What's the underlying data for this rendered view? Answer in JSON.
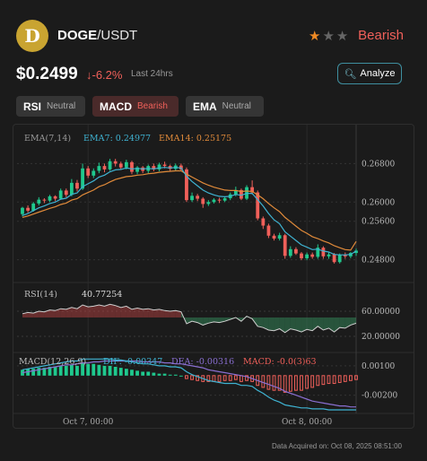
{
  "header": {
    "logo_letter": "D",
    "base": "DOGE",
    "quote": "/USDT",
    "rating_filled": 1,
    "rating_total": 3,
    "sentiment": "Bearish"
  },
  "price": {
    "value": "$0.2499",
    "change": "-6.2%",
    "change_arrow": "↓",
    "period": "Last 24hrs"
  },
  "analyze_label": "Analyze",
  "indicators": [
    {
      "name": "RSI",
      "status": "Neutral"
    },
    {
      "name": "MACD",
      "status": "Bearish"
    },
    {
      "name": "EMA",
      "status": "Neutral"
    }
  ],
  "colors": {
    "up": "#1fc98e",
    "down": "#f0605a",
    "ema7": "#3fb3d2",
    "ema14": "#e08a3a",
    "accent": "#f08a24"
  },
  "chart_data": {
    "type": "candlestick",
    "legend": {
      "ema_title": "EMA(7,14)",
      "ema7": "EMA7: 0.24977",
      "ema14": "EMA14: 0.25175",
      "rsi_title": "RSI(14)",
      "rsi_value": "40.77254",
      "macd_title": "MACD(12,26,9)",
      "dif": "DIF: -0.00347",
      "dea": "DEA: -0.00316",
      "macd": "MACD: -0.0(3)63"
    },
    "price_axis": {
      "ticks": [
        "0.26800",
        "0.26000",
        "0.25600",
        "0.24800"
      ],
      "ylim": [
        0.244,
        0.272
      ]
    },
    "rsi_axis": {
      "ticks": [
        "60.00000",
        "20.00000"
      ],
      "ylim": [
        0,
        100
      ]
    },
    "macd_axis": {
      "ticks": [
        "0.00100",
        "-0.00200"
      ],
      "ylim": [
        -0.0035,
        0.002
      ]
    },
    "time_ticks": [
      {
        "label": "Oct 7, 00:00",
        "index": 12
      },
      {
        "label": "Oct 8, 00:00",
        "index": 52
      }
    ],
    "candles": [
      [
        0.2575,
        0.2588,
        0.257,
        0.259
      ],
      [
        0.2588,
        0.2582,
        0.2578,
        0.2593
      ],
      [
        0.2582,
        0.2597,
        0.258,
        0.26
      ],
      [
        0.2597,
        0.2605,
        0.2593,
        0.261
      ],
      [
        0.2605,
        0.2603,
        0.2598,
        0.2608
      ],
      [
        0.2603,
        0.2612,
        0.26,
        0.2615
      ],
      [
        0.2612,
        0.2607,
        0.2602,
        0.2614
      ],
      [
        0.2607,
        0.2624,
        0.2605,
        0.2628
      ],
      [
        0.2624,
        0.2615,
        0.261,
        0.2628
      ],
      [
        0.2615,
        0.264,
        0.2612,
        0.2648
      ],
      [
        0.264,
        0.2628,
        0.2622,
        0.2646
      ],
      [
        0.2628,
        0.267,
        0.2625,
        0.268
      ],
      [
        0.267,
        0.2655,
        0.265,
        0.2675
      ],
      [
        0.2655,
        0.2665,
        0.265,
        0.267
      ],
      [
        0.2665,
        0.2675,
        0.266,
        0.2682
      ],
      [
        0.2675,
        0.2668,
        0.2662,
        0.268
      ],
      [
        0.2668,
        0.2685,
        0.2665,
        0.269
      ],
      [
        0.2685,
        0.268,
        0.2674,
        0.269
      ],
      [
        0.268,
        0.2672,
        0.2667,
        0.2684
      ],
      [
        0.2672,
        0.2683,
        0.2668,
        0.2688
      ],
      [
        0.2683,
        0.2663,
        0.2658,
        0.2686
      ],
      [
        0.2663,
        0.2672,
        0.2658,
        0.2675
      ],
      [
        0.2672,
        0.2665,
        0.266,
        0.2675
      ],
      [
        0.2665,
        0.2675,
        0.266,
        0.2678
      ],
      [
        0.2675,
        0.2668,
        0.2664,
        0.268
      ],
      [
        0.2668,
        0.2678,
        0.2664,
        0.2682
      ],
      [
        0.2678,
        0.2675,
        0.267,
        0.2684
      ],
      [
        0.2675,
        0.2669,
        0.2664,
        0.2678
      ],
      [
        0.2669,
        0.2676,
        0.2664,
        0.268
      ],
      [
        0.2676,
        0.2668,
        0.2664,
        0.268
      ],
      [
        0.2668,
        0.2604,
        0.26,
        0.2672
      ],
      [
        0.2604,
        0.2613,
        0.26,
        0.262
      ],
      [
        0.2613,
        0.2607,
        0.2602,
        0.2617
      ],
      [
        0.2607,
        0.2596,
        0.2588,
        0.261
      ],
      [
        0.2596,
        0.26,
        0.2592,
        0.2604
      ],
      [
        0.26,
        0.2605,
        0.2597,
        0.2608
      ],
      [
        0.2605,
        0.2603,
        0.2598,
        0.2609
      ],
      [
        0.2603,
        0.2608,
        0.26,
        0.2612
      ],
      [
        0.2608,
        0.2616,
        0.2604,
        0.262
      ],
      [
        0.2616,
        0.2625,
        0.2612,
        0.2632
      ],
      [
        0.2625,
        0.2607,
        0.2604,
        0.2628
      ],
      [
        0.2607,
        0.2631,
        0.2604,
        0.2635
      ],
      [
        0.2631,
        0.262,
        0.2616,
        0.2645
      ],
      [
        0.262,
        0.2566,
        0.2562,
        0.2624
      ],
      [
        0.2566,
        0.2551,
        0.2544,
        0.257
      ],
      [
        0.2551,
        0.253,
        0.2525,
        0.2555
      ],
      [
        0.253,
        0.2524,
        0.252,
        0.2534
      ],
      [
        0.2524,
        0.2531,
        0.252,
        0.2536
      ],
      [
        0.2531,
        0.2488,
        0.2482,
        0.2534
      ],
      [
        0.2488,
        0.2502,
        0.2484,
        0.2508
      ],
      [
        0.2502,
        0.2493,
        0.249,
        0.2506
      ],
      [
        0.2493,
        0.2483,
        0.2479,
        0.2496
      ],
      [
        0.2483,
        0.2491,
        0.2479,
        0.2495
      ],
      [
        0.2491,
        0.2486,
        0.2482,
        0.2495
      ],
      [
        0.2486,
        0.2505,
        0.2482,
        0.2512
      ],
      [
        0.2505,
        0.2487,
        0.2482,
        0.2508
      ],
      [
        0.2487,
        0.2491,
        0.2482,
        0.2495
      ],
      [
        0.2491,
        0.2475,
        0.2472,
        0.2494
      ],
      [
        0.2475,
        0.249,
        0.2472,
        0.2493
      ],
      [
        0.249,
        0.2487,
        0.2482,
        0.2495
      ],
      [
        0.2487,
        0.2494,
        0.2483,
        0.2496
      ],
      [
        0.2494,
        0.2499,
        0.2488,
        0.2503
      ]
    ],
    "ema7": [
      0.2572,
      0.2576,
      0.2582,
      0.2588,
      0.2592,
      0.2597,
      0.26,
      0.2606,
      0.2608,
      0.2616,
      0.2619,
      0.2632,
      0.2638,
      0.2644,
      0.2652,
      0.2656,
      0.2663,
      0.2667,
      0.2668,
      0.2671,
      0.2669,
      0.267,
      0.2669,
      0.267,
      0.2669,
      0.2671,
      0.2672,
      0.2671,
      0.2672,
      0.2671,
      0.2654,
      0.2643,
      0.2634,
      0.2625,
      0.2619,
      0.2615,
      0.2612,
      0.2611,
      0.2612,
      0.2616,
      0.2614,
      0.2618,
      0.2618,
      0.2605,
      0.2592,
      0.2576,
      0.2563,
      0.2555,
      0.2538,
      0.2529,
      0.252,
      0.2511,
      0.2506,
      0.2501,
      0.2502,
      0.2498,
      0.2496,
      0.2491,
      0.249,
      0.249,
      0.2491,
      0.2498
    ],
    "ema14": [
      0.2568,
      0.2571,
      0.2575,
      0.2579,
      0.2583,
      0.2587,
      0.259,
      0.2595,
      0.2598,
      0.2604,
      0.2607,
      0.2615,
      0.262,
      0.2625,
      0.2632,
      0.2636,
      0.2642,
      0.2647,
      0.265,
      0.2653,
      0.2654,
      0.2656,
      0.2657,
      0.2659,
      0.266,
      0.2662,
      0.2663,
      0.2664,
      0.2665,
      0.2665,
      0.2658,
      0.2652,
      0.2646,
      0.264,
      0.2635,
      0.2631,
      0.2628,
      0.2625,
      0.2624,
      0.2624,
      0.2622,
      0.2623,
      0.2622,
      0.2615,
      0.2607,
      0.2597,
      0.2588,
      0.258,
      0.2568,
      0.2559,
      0.255,
      0.2541,
      0.2535,
      0.2528,
      0.2524,
      0.2519,
      0.2515,
      0.2509,
      0.2505,
      0.2501,
      0.25,
      0.2518
    ],
    "rsi": [
      56,
      58,
      57,
      60,
      59,
      62,
      61,
      64,
      63,
      66,
      64,
      70,
      67,
      68,
      70,
      68,
      71,
      69,
      66,
      68,
      63,
      65,
      63,
      64,
      62,
      63,
      61,
      60,
      61,
      59,
      40,
      44,
      42,
      38,
      41,
      43,
      42,
      44,
      47,
      50,
      44,
      52,
      48,
      36,
      34,
      30,
      29,
      32,
      26,
      32,
      30,
      27,
      31,
      29,
      36,
      30,
      33,
      27,
      34,
      33,
      38,
      40.8
    ],
    "macd_hist": [
      0.0006,
      0.0007,
      0.0007,
      0.0008,
      0.0008,
      0.0009,
      0.0009,
      0.001,
      0.001,
      0.0011,
      0.001,
      0.0013,
      0.0012,
      0.0012,
      0.0011,
      0.001,
      0.001,
      0.0009,
      0.0008,
      0.0007,
      0.0006,
      0.0005,
      0.0004,
      0.0004,
      0.0003,
      0.0002,
      0.0002,
      0.0001,
      0.0001,
      0.0,
      -0.0003,
      -0.0004,
      -0.0005,
      -0.0006,
      -0.0006,
      -0.0006,
      -0.0006,
      -0.0005,
      -0.0005,
      -0.0004,
      -0.0006,
      -0.0005,
      -0.0006,
      -0.001,
      -0.0012,
      -0.0014,
      -0.0015,
      -0.0015,
      -0.0017,
      -0.0016,
      -0.0015,
      -0.0015,
      -0.0013,
      -0.0012,
      -0.001,
      -0.0009,
      -0.0008,
      -0.0008,
      -0.0007,
      -0.0006,
      -0.0005,
      -0.0004
    ],
    "dif": [
      0.0006,
      0.0007,
      0.0008,
      0.0009,
      0.001,
      0.0011,
      0.0012,
      0.0013,
      0.0014,
      0.0015,
      0.0015,
      0.0017,
      0.0017,
      0.0017,
      0.0017,
      0.0017,
      0.0017,
      0.0016,
      0.0016,
      0.0015,
      0.0014,
      0.0013,
      0.0012,
      0.0012,
      0.0011,
      0.001,
      0.001,
      0.0009,
      0.0009,
      0.0008,
      0.0004,
      0.0001,
      -0.0001,
      -0.0003,
      -0.0005,
      -0.0006,
      -0.0007,
      -0.0008,
      -0.0008,
      -0.0008,
      -0.001,
      -0.001,
      -0.0011,
      -0.0015,
      -0.0018,
      -0.0022,
      -0.0025,
      -0.0027,
      -0.003,
      -0.0031,
      -0.0032,
      -0.0033,
      -0.0033,
      -0.0034,
      -0.0034,
      -0.0034,
      -0.0035,
      -0.0035,
      -0.0035,
      -0.0035,
      -0.0035,
      -0.0035
    ],
    "dea": [
      0.0003,
      0.0004,
      0.0005,
      0.0006,
      0.0007,
      0.0008,
      0.0009,
      0.001,
      0.0011,
      0.0011,
      0.0012,
      0.0013,
      0.0013,
      0.0014,
      0.0014,
      0.0015,
      0.0015,
      0.0015,
      0.0015,
      0.0015,
      0.0015,
      0.0015,
      0.0014,
      0.0014,
      0.0014,
      0.0014,
      0.0013,
      0.0013,
      0.0012,
      0.0012,
      0.0011,
      0.001,
      0.0009,
      0.0008,
      0.0006,
      0.0005,
      0.0004,
      0.0003,
      0.0002,
      0.0001,
      0.0,
      -0.0001,
      -0.0003,
      -0.0005,
      -0.0007,
      -0.0009,
      -0.0011,
      -0.0013,
      -0.0016,
      -0.0018,
      -0.002,
      -0.0022,
      -0.0024,
      -0.0026,
      -0.0027,
      -0.0028,
      -0.0029,
      -0.003,
      -0.0031,
      -0.0031,
      -0.0032,
      -0.0032
    ]
  },
  "footer": "Data Acquired on: Oct 08, 2025 08:51:00"
}
